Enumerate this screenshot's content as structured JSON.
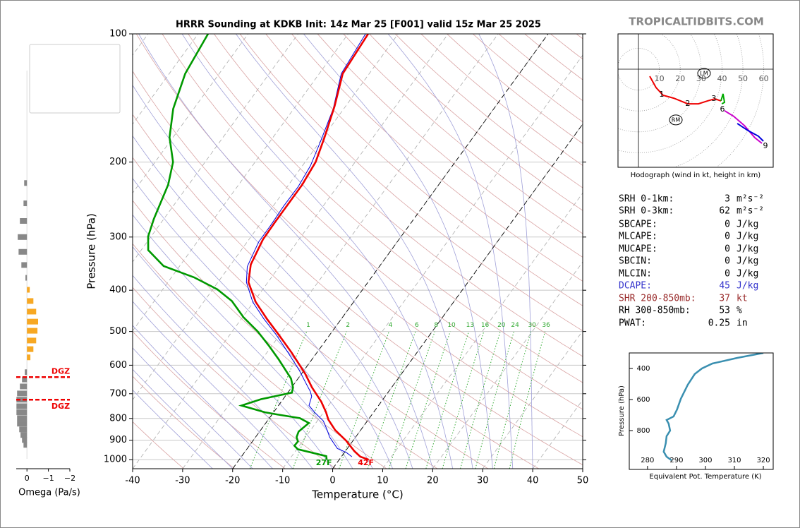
{
  "site_label": "TROPICALTIDBITS.COM",
  "chart_data": [
    {
      "type": "skewt",
      "title": "HRRR Sounding at KDKB Init: 14z Mar 25 [F001] valid 15z Mar 25 2025",
      "xlabel": "Temperature (°C)",
      "ylabel": "Pressure (hPa)",
      "log_y": true,
      "xlim": [
        -40,
        50
      ],
      "ylim": [
        1050,
        100
      ],
      "xticks": [
        -40,
        -30,
        -20,
        -10,
        0,
        10,
        20,
        30,
        40,
        50
      ],
      "yticks": [
        100,
        200,
        300,
        400,
        500,
        600,
        700,
        800,
        900,
        1000
      ],
      "grid": true,
      "highlight_isotherms": [
        -20,
        0
      ],
      "mixing_ratios": [
        1,
        2,
        4,
        6,
        8,
        10,
        13,
        16,
        20,
        24,
        30,
        36
      ],
      "background_lines": [
        {
          "name": "Sat. Mix. Ratio",
          "color": "#2a9d8f"
        },
        {
          "name": "Dry Adiabats",
          "color": "#d9a3a3"
        },
        {
          "name": "Pseudoadiabats",
          "color": "#a0a0d8"
        }
      ],
      "series": [
        {
          "name": "Wetbulb",
          "color": "#0000dd",
          "pressure": [
            100,
            124,
            150,
            179,
            204,
            229,
            254,
            280,
            308,
            352,
            383,
            426,
            467,
            509,
            560,
            616,
            665,
            691,
            710,
            746,
            774,
            811,
            852,
            885,
            941,
            962,
            984
          ],
          "values": [
            -56.5,
            -55.6,
            -52.1,
            -49.9,
            -48.4,
            -47.8,
            -47.9,
            -47.7,
            -47.7,
            -46.4,
            -44.3,
            -40.2,
            -35.5,
            -30.7,
            -25.8,
            -21.0,
            -17.5,
            -15.7,
            -14.7,
            -13.9,
            -11.8,
            -8.8,
            -6.7,
            -5.2,
            -2.0,
            0.4,
            2.1
          ]
        },
        {
          "name": "Dewpoint",
          "color": "#009900",
          "surface_label": "27F",
          "pressure": [
            100,
            124,
            150,
            175,
            200,
            226,
            272,
            299,
            322,
            351,
            373,
            398,
            424,
            463,
            500,
            539,
            582,
            645,
            677,
            696,
            721,
            746,
            774,
            783,
            799,
            820,
            859,
            885,
            906,
            927,
            945,
            981,
            1000
          ],
          "values": [
            -88.0,
            -86.8,
            -84.1,
            -80.7,
            -76.4,
            -74.1,
            -72.0,
            -70.6,
            -68.6,
            -63.2,
            -55.5,
            -49.1,
            -44.5,
            -39.8,
            -34.9,
            -30.7,
            -26.6,
            -21.4,
            -19.7,
            -19.2,
            -24.4,
            -27.4,
            -21.7,
            -19.0,
            -13.9,
            -11.4,
            -12.2,
            -11.8,
            -10.9,
            -11.0,
            -9.8,
            -3.1,
            -2.5
          ]
        },
        {
          "name": "Temperature",
          "color": "#ee0000",
          "surface_label": "42F",
          "pressure": [
            100,
            124,
            148,
            175,
            200,
            226,
            252,
            277,
            304,
            348,
            383,
            426,
            467,
            509,
            560,
            628,
            677,
            731,
            774,
            805,
            852,
            902,
            955,
            984,
            1000
          ],
          "values": [
            -56.0,
            -55.3,
            -52.2,
            -49.7,
            -47.9,
            -47.3,
            -47.3,
            -47.3,
            -47.2,
            -46.0,
            -43.9,
            -39.6,
            -34.9,
            -30.2,
            -25.1,
            -19.3,
            -15.9,
            -12.0,
            -9.5,
            -8.0,
            -5.1,
            -1.4,
            1.8,
            3.8,
            5.9
          ]
        }
      ]
    },
    {
      "type": "hbar",
      "xlabel": "Omega (Pa/s)",
      "xlim": [
        0.5,
        -2
      ],
      "ylim": [
        1050,
        100
      ],
      "xticks": [
        0,
        {
          "value": -1,
          "label": "−1"
        },
        {
          "value": -2,
          "label": "−2"
        }
      ],
      "positive_color": "#888888",
      "negative_color": "#f7a823",
      "pressure": [
        224,
        250,
        275,
        300,
        325,
        349,
        374,
        399,
        424,
        449,
        474,
        498,
        525,
        550,
        575,
        623,
        648,
        673,
        699,
        723,
        749,
        774,
        799,
        823,
        849,
        875,
        899,
        923
      ],
      "values": [
        0.13,
        0.16,
        0.33,
        0.43,
        0.39,
        0.26,
        0.07,
        -0.13,
        -0.3,
        -0.43,
        -0.52,
        -0.49,
        -0.43,
        -0.3,
        -0.16,
        0.1,
        0.23,
        0.33,
        0.46,
        0.49,
        0.49,
        0.49,
        0.46,
        0.46,
        0.36,
        0.3,
        0.23,
        0.16
      ],
      "dgz_color": "#ee0000",
      "dgz": [
        {
          "pressure": 640,
          "label": "DGZ"
        },
        {
          "pressure": 723,
          "label": "DGZ"
        }
      ]
    },
    {
      "type": "hodograph",
      "caption": "Hodograph (wind in kt, height in km)",
      "xlim": [
        -9.8,
        64.5
      ],
      "ylim": [
        -47,
        16.9
      ],
      "rings": [
        10,
        20,
        30,
        40,
        50,
        60
      ],
      "series": [
        {
          "color": "#ee0000",
          "u": [
            5.4,
            8.4,
            11.8,
            16.9,
            23.6,
            28.7,
            33.1,
            36.5,
            39.5
          ],
          "v": [
            -3.4,
            -8.8,
            -12.5,
            -13.9,
            -16.6,
            -16.6,
            -15.2,
            -14.2,
            -15.2
          ]
        },
        {
          "color": "#00aa00",
          "u": [
            39.5,
            40.5,
            41.2,
            39.9
          ],
          "v": [
            -15.2,
            -11.8,
            -15.9,
            -16.6
          ]
        },
        {
          "color": "#cc00cc",
          "u": [
            41.2,
            45.6,
            50.7,
            55.7,
            59.1
          ],
          "v": [
            -19.9,
            -22.6,
            -27.0,
            -32.8,
            -35.5
          ]
        },
        {
          "color": "#0000dd",
          "u": [
            47.3,
            52.4,
            57.4,
            59.8
          ],
          "v": [
            -26.0,
            -29.4,
            -32.1,
            -34.5
          ]
        }
      ],
      "height_labels": [
        {
          "height": 1,
          "u": 11.1,
          "v": -12.2
        },
        {
          "height": 2,
          "u": 23.6,
          "v": -16.6
        },
        {
          "height": 3,
          "u": 36.1,
          "v": -14.2
        },
        {
          "height": 6,
          "u": 40.2,
          "v": -19.3
        },
        {
          "height": 9,
          "u": 60.8,
          "v": -36.8
        }
      ],
      "storm_motion": [
        {
          "label": "LM",
          "u": 31.4,
          "v": -2.0
        },
        {
          "label": "RM",
          "u": 17.9,
          "v": -24.3
        }
      ]
    },
    {
      "type": "line",
      "xlabel": "Equivalent Pot. Temperature (K)",
      "ylabel": "Pressure (hPa)",
      "color": "#3a8fb0",
      "xlim": [
        273.7,
        323.4
      ],
      "ylim": [
        1050,
        300
      ],
      "xticks": [
        280,
        290,
        300,
        310,
        320
      ],
      "yticks": [
        400,
        600,
        800
      ],
      "x": [
        320,
        311.0,
        302.4,
        298.8,
        296.3,
        293.9,
        291.5,
        290.2,
        289.0,
        286.6,
        287.3,
        287.8,
        286.6,
        286.3,
        285.6,
        286.6,
        288.3
      ],
      "values": [
        300,
        331.8,
        368,
        400,
        436,
        505,
        595,
        664,
        709,
        732,
        755,
        800,
        836,
        882,
        936,
        968,
        991
      ]
    }
  ],
  "stats": [
    {
      "label": "SRH 0-1km:",
      "value": 3,
      "unit": "m²s⁻²"
    },
    {
      "label": "SRH 0-3km:",
      "value": 62,
      "unit": "m²s⁻²"
    },
    {
      "label": "SBCAPE:",
      "value": 0,
      "unit": "J/kg"
    },
    {
      "label": "MLCAPE:",
      "value": 0,
      "unit": "J/kg"
    },
    {
      "label": "MUCAPE:",
      "value": 0,
      "unit": "J/kg"
    },
    {
      "label": "SBCIN:",
      "value": 0,
      "unit": "J/kg"
    },
    {
      "label": "MLCIN:",
      "value": 0,
      "unit": "J/kg"
    },
    {
      "label": "DCAPE:",
      "value": 45,
      "unit": "J/kg",
      "color": "#3333cc"
    },
    {
      "label": "SHR 200-850mb:",
      "value": 37,
      "unit": "kt",
      "color": "#992a2a"
    },
    {
      "label": "RH 300-850mb:",
      "value": 53,
      "unit": "%"
    },
    {
      "label": "PWAT:",
      "value": 0.25,
      "unit": "in"
    }
  ]
}
